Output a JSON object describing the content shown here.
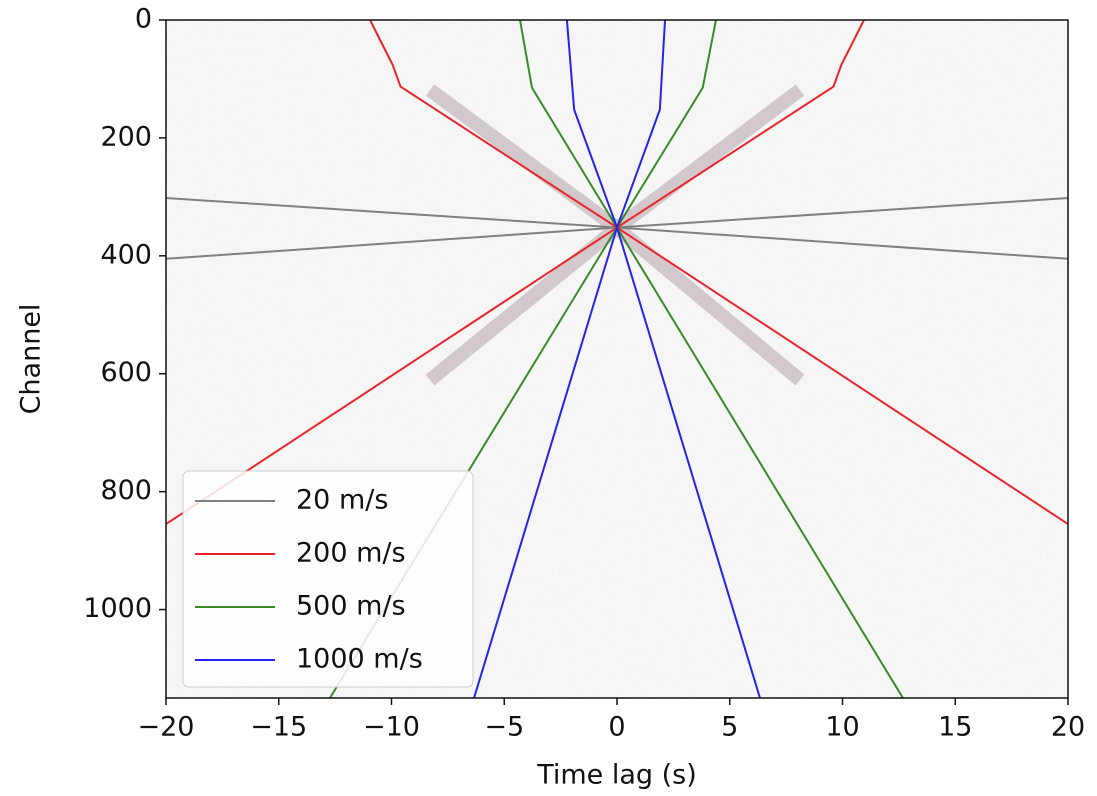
{
  "chart_data": {
    "type": "line",
    "x_label": "Time lag (s)",
    "y_label": "Channel",
    "xlim": [
      -20,
      20
    ],
    "xticks": [
      {
        "value": -20,
        "label": "−20"
      },
      {
        "value": -15,
        "label": "−15"
      },
      {
        "value": -10,
        "label": "−10"
      },
      {
        "value": -5,
        "label": "−5"
      },
      0,
      5,
      10,
      15,
      20
    ],
    "ylim": [
      0,
      1150
    ],
    "y_inverted": true,
    "yticks": [
      0,
      200,
      400,
      600,
      800,
      1000
    ],
    "legend": "lower left",
    "series": [
      {
        "name": "20 m/s",
        "color": "#808080",
        "x": [
          -20,
          0,
          20,
          null,
          -20,
          0,
          20
        ],
        "y": [
          302,
          352,
          302,
          null,
          405,
          352,
          405
        ]
      },
      {
        "name": "200 m/s",
        "color": "#e8262a",
        "x": [
          -10.95,
          -10.4,
          -9.95,
          -9.6,
          0,
          -20,
          null,
          10.95,
          10.4,
          9.95,
          9.6,
          0,
          20
        ],
        "y": [
          0,
          42,
          76,
          113,
          352,
          855,
          null,
          0,
          42,
          76,
          113,
          352,
          855
        ]
      },
      {
        "name": "500 m/s",
        "color": "#3a8a2a",
        "x": [
          -4.3,
          -3.77,
          0,
          -12.73,
          null,
          4.39,
          3.8,
          0,
          12.68
        ],
        "y": [
          0,
          115,
          352,
          1150,
          null,
          0,
          115,
          352,
          1150
        ]
      },
      {
        "name": "1000 m/s",
        "color": "#2424e8",
        "x": [
          -2.22,
          -1.9,
          0,
          -6.34,
          null,
          2.13,
          1.9,
          0,
          6.34
        ],
        "y": [
          0,
          152,
          352,
          1150,
          null,
          0,
          152,
          352,
          1150
        ]
      }
    ]
  }
}
